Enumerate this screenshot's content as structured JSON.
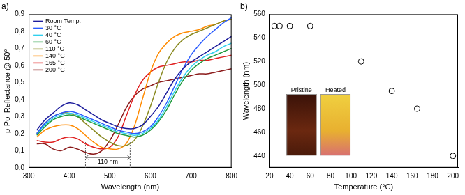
{
  "chart_data": [
    {
      "type": "line",
      "panel": "a)",
      "x_label": "Wavelength (nm)",
      "y_label": "p-Pol Reflectance @ 50°",
      "x": [
        320,
        340,
        360,
        380,
        400,
        420,
        440,
        460,
        480,
        500,
        520,
        540,
        560,
        580,
        600,
        620,
        640,
        660,
        680,
        700,
        720,
        740,
        760,
        780,
        800
      ],
      "series": [
        {
          "name": "Room Temp.",
          "color": "#1c1c9c",
          "values": [
            0.22,
            0.28,
            0.32,
            0.36,
            0.38,
            0.37,
            0.34,
            0.31,
            0.28,
            0.26,
            0.24,
            0.23,
            0.23,
            0.25,
            0.3,
            0.36,
            0.44,
            0.52,
            0.58,
            0.62,
            0.65,
            0.68,
            0.71,
            0.74,
            0.77
          ]
        },
        {
          "name": "30 °C",
          "color": "#2a5cff",
          "values": [
            0.2,
            0.26,
            0.3,
            0.32,
            0.33,
            0.32,
            0.3,
            0.28,
            0.26,
            0.24,
            0.22,
            0.21,
            0.2,
            0.21,
            0.24,
            0.3,
            0.38,
            0.48,
            0.58,
            0.66,
            0.72,
            0.77,
            0.81,
            0.85,
            0.88
          ]
        },
        {
          "name": "40 °C",
          "color": "#30d0ee",
          "values": [
            0.2,
            0.25,
            0.29,
            0.31,
            0.32,
            0.31,
            0.29,
            0.27,
            0.25,
            0.23,
            0.21,
            0.2,
            0.19,
            0.2,
            0.23,
            0.28,
            0.36,
            0.45,
            0.53,
            0.59,
            0.63,
            0.66,
            0.68,
            0.71,
            0.73
          ]
        },
        {
          "name": "60 °C",
          "color": "#1f9a3c",
          "values": [
            0.19,
            0.24,
            0.28,
            0.3,
            0.31,
            0.3,
            0.28,
            0.26,
            0.24,
            0.22,
            0.2,
            0.19,
            0.18,
            0.19,
            0.22,
            0.27,
            0.34,
            0.43,
            0.51,
            0.57,
            0.61,
            0.64,
            0.66,
            0.68,
            0.7
          ]
        },
        {
          "name": "110 °C",
          "color": "#8a8a22",
          "values": [
            0.2,
            0.26,
            0.3,
            0.32,
            0.32,
            0.3,
            0.26,
            0.22,
            0.18,
            0.15,
            0.13,
            0.13,
            0.16,
            0.24,
            0.36,
            0.5,
            0.62,
            0.7,
            0.75,
            0.78,
            0.8,
            0.82,
            0.84,
            0.86,
            0.87
          ]
        },
        {
          "name": "140 °C",
          "color": "#ff8a00",
          "values": [
            0.18,
            0.22,
            0.24,
            0.25,
            0.25,
            0.23,
            0.19,
            0.15,
            0.12,
            0.11,
            0.11,
            0.14,
            0.24,
            0.4,
            0.56,
            0.67,
            0.73,
            0.77,
            0.79,
            0.8,
            0.81,
            0.83,
            0.84,
            0.86,
            0.87
          ]
        },
        {
          "name": "165 °C",
          "color": "#e02020",
          "values": [
            0.16,
            0.15,
            0.15,
            0.17,
            0.18,
            0.17,
            0.14,
            0.12,
            0.11,
            0.12,
            0.18,
            0.3,
            0.42,
            0.51,
            0.56,
            0.59,
            0.6,
            0.61,
            0.62,
            0.62,
            0.63,
            0.63,
            0.64,
            0.65,
            0.66
          ]
        },
        {
          "name": "200 °C",
          "color": "#8b1a1a",
          "values": [
            0.14,
            0.14,
            0.11,
            0.1,
            0.12,
            0.11,
            0.09,
            0.08,
            0.1,
            0.16,
            0.25,
            0.35,
            0.42,
            0.46,
            0.48,
            0.5,
            0.51,
            0.52,
            0.53,
            0.54,
            0.55,
            0.55,
            0.56,
            0.57,
            0.58
          ]
        }
      ],
      "xlim": [
        300,
        800
      ],
      "xticks": [
        300,
        400,
        500,
        600,
        700,
        800
      ],
      "ylim": [
        0,
        0.9
      ],
      "yticks": [
        {
          "value": 0,
          "label": "0,0"
        },
        {
          "value": 0.1,
          "label": "0,1"
        },
        {
          "value": 0.2,
          "label": "0,2"
        },
        {
          "value": 0.3,
          "label": "0,3"
        },
        {
          "value": 0.4,
          "label": "0,4"
        },
        {
          "value": 0.5,
          "label": "0,5"
        },
        {
          "value": 0.6,
          "label": "0,6"
        },
        {
          "value": 0.7,
          "label": "0,7"
        },
        {
          "value": 0.8,
          "label": "0,8"
        },
        {
          "value": 0.9,
          "label": "0,9"
        }
      ],
      "grid": false,
      "legend": "upper left",
      "annotations": [
        {
          "text": "110 nm",
          "x": [
            440,
            550
          ],
          "y": 0.06
        }
      ]
    },
    {
      "type": "scatter",
      "panel": "b)",
      "x_label": "Temperature (°C)",
      "y_label": "Wavelength (nm)",
      "x": [
        25,
        30,
        40,
        60,
        110,
        140,
        165,
        200
      ],
      "values": [
        550,
        550,
        550,
        550,
        520,
        495,
        480,
        440
      ],
      "color": "#000000",
      "marker": "open_circle",
      "xlim": [
        20,
        205
      ],
      "xticks": [
        20,
        40,
        60,
        80,
        100,
        120,
        140,
        160,
        180,
        200
      ],
      "ylim": [
        430,
        560
      ],
      "yticks": [
        440,
        460,
        480,
        500,
        520,
        540,
        560
      ],
      "grid": false,
      "inset_labels": [
        "Pristine",
        "Heated"
      ]
    }
  ]
}
